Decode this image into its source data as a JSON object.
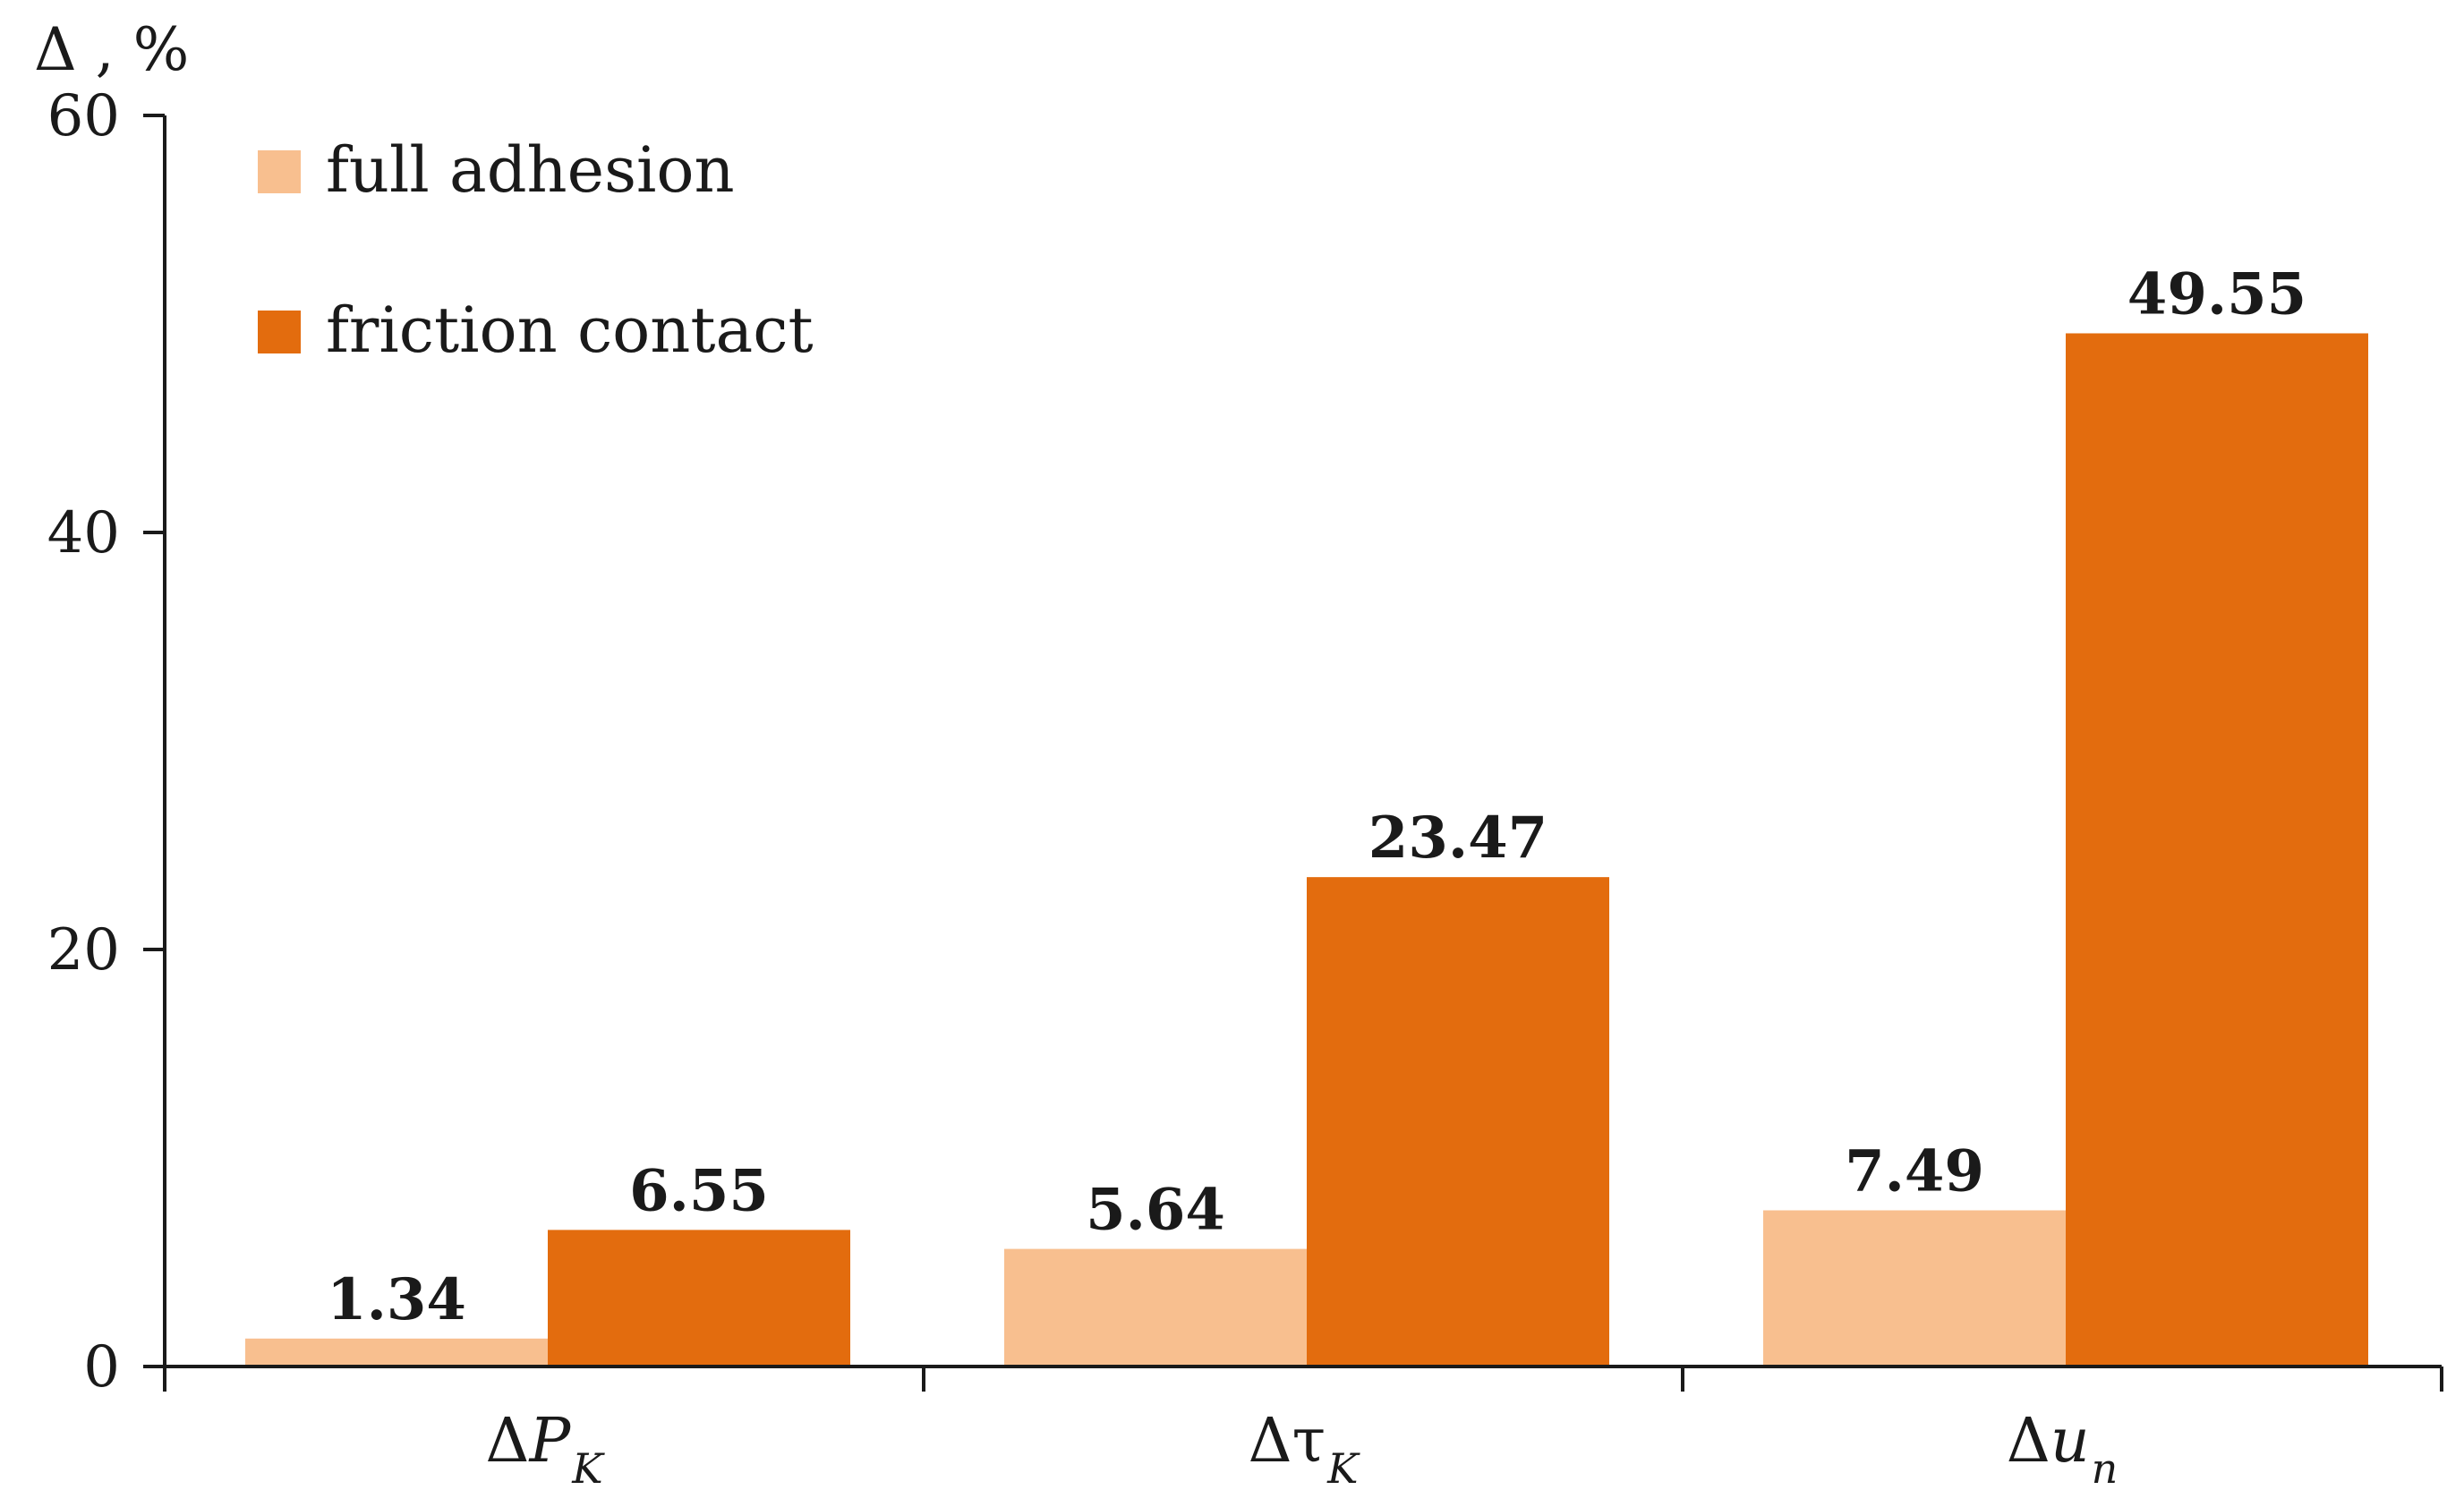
{
  "chart_data": {
    "type": "bar",
    "ylabel": "Δ , %",
    "ylim": [
      0,
      60
    ],
    "yticks": [
      "0",
      "20",
      "40",
      "60"
    ],
    "categories": [
      {
        "base": "Δ",
        "var": "P",
        "sub": "K",
        "italic_var": true
      },
      {
        "base": "Δ",
        "var": "τ",
        "sub": "K",
        "italic_var": false
      },
      {
        "base": "Δ",
        "var": "u",
        "sub": "n",
        "italic_var": true
      }
    ],
    "series": [
      {
        "name": "full adhesion",
        "color": "#F8BF8F",
        "values": [
          1.34,
          5.64,
          7.49
        ],
        "labels": [
          "1.34",
          "5.64",
          "7.49"
        ]
      },
      {
        "name": "friction contact",
        "color": "#E36C0E",
        "values": [
          6.55,
          23.47,
          49.55
        ],
        "labels": [
          "6.55",
          "23.47",
          "49.55"
        ]
      }
    ],
    "legend_position": "top-left",
    "grid": false
  }
}
